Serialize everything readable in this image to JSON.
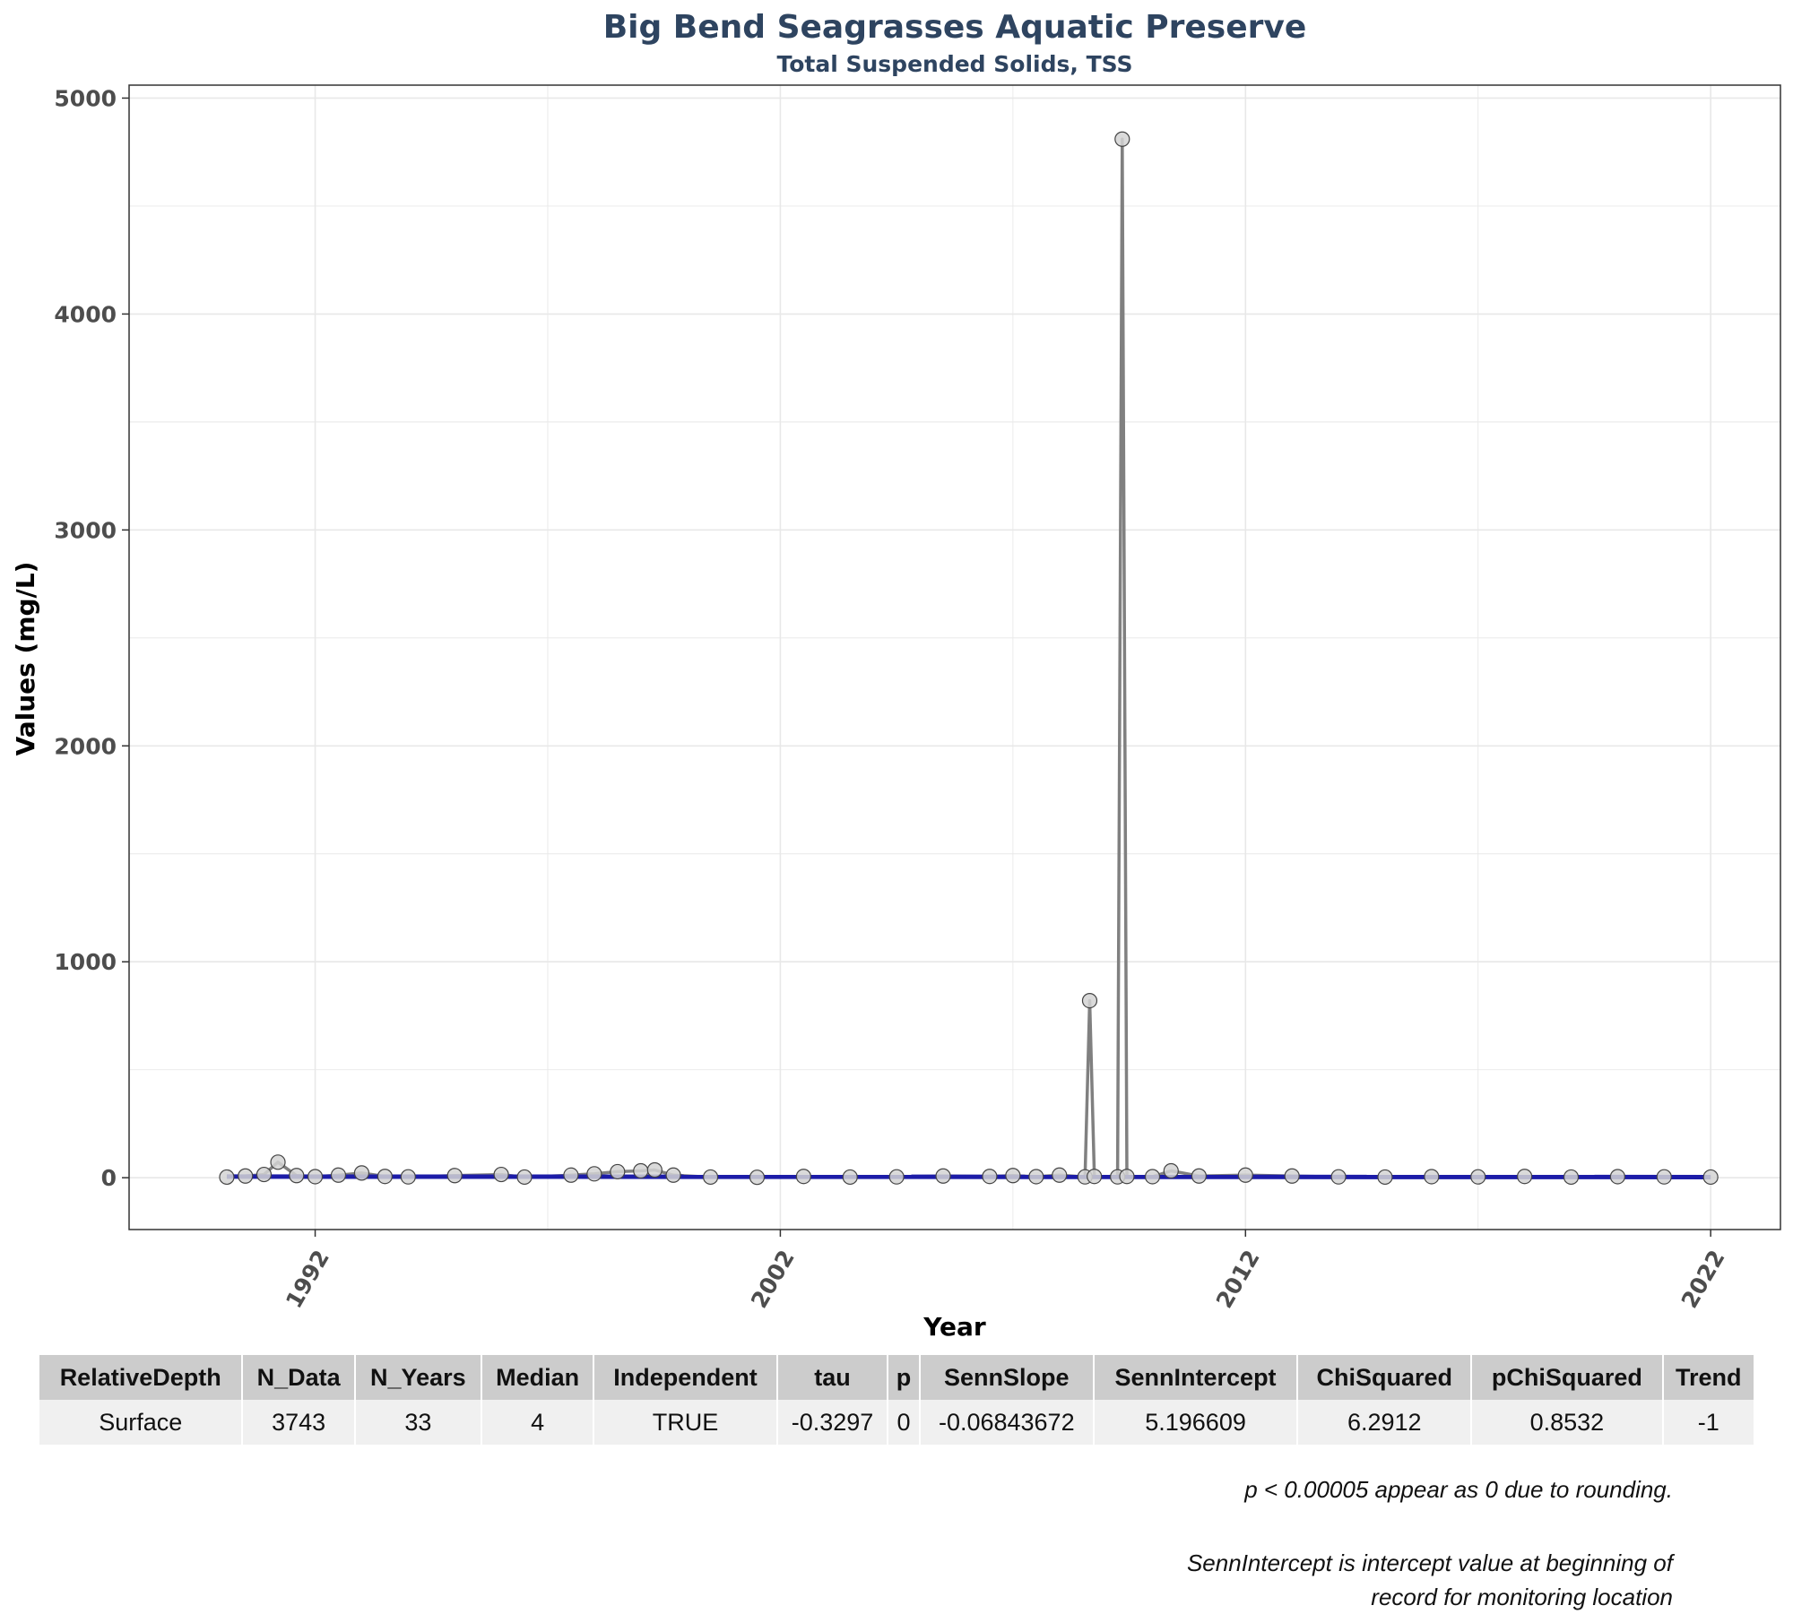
{
  "chart_data": {
    "type": "line",
    "title": "Big Bend Seagrasses Aquatic Preserve",
    "subtitle": "Total Suspended Solids, TSS",
    "xlabel": "Year",
    "ylabel": "Values (mg/L)",
    "xlim": [
      1988.0,
      2023.5
    ],
    "ylim": [
      -240,
      5060
    ],
    "x_ticks": [
      1992,
      2002,
      2012,
      2022
    ],
    "y_ticks": [
      0,
      1000,
      2000,
      3000,
      4000,
      5000
    ],
    "grid": true,
    "series": [
      {
        "points": [
          [
            1990.1,
            3
          ],
          [
            1990.5,
            8
          ],
          [
            1990.9,
            15
          ],
          [
            1991.2,
            72
          ],
          [
            1991.6,
            10
          ],
          [
            1992.0,
            5
          ],
          [
            1992.5,
            12
          ],
          [
            1993.0,
            22
          ],
          [
            1993.5,
            6
          ],
          [
            1994.0,
            4
          ],
          [
            1995.0,
            10
          ],
          [
            1996.0,
            15
          ],
          [
            1996.5,
            3
          ],
          [
            1997.5,
            12
          ],
          [
            1998.0,
            18
          ],
          [
            1998.5,
            28
          ],
          [
            1999.0,
            32
          ],
          [
            1999.3,
            36
          ],
          [
            1999.7,
            12
          ],
          [
            2000.5,
            3
          ],
          [
            2001.5,
            2
          ],
          [
            2002.5,
            6
          ],
          [
            2003.5,
            3
          ],
          [
            2004.5,
            4
          ],
          [
            2005.5,
            8
          ],
          [
            2006.5,
            6
          ],
          [
            2007.0,
            10
          ],
          [
            2007.5,
            5
          ],
          [
            2008.0,
            12
          ],
          [
            2008.55,
            4
          ],
          [
            2008.65,
            820
          ],
          [
            2008.75,
            6
          ],
          [
            2009.25,
            4
          ],
          [
            2009.35,
            4810
          ],
          [
            2009.45,
            6
          ],
          [
            2010.0,
            5
          ],
          [
            2010.4,
            32
          ],
          [
            2011.0,
            8
          ],
          [
            2012.0,
            12
          ],
          [
            2013.0,
            8
          ],
          [
            2014.0,
            4
          ],
          [
            2015.0,
            3
          ],
          [
            2016.0,
            5
          ],
          [
            2017.0,
            4
          ],
          [
            2018.0,
            6
          ],
          [
            2019.0,
            3
          ],
          [
            2020.0,
            5
          ],
          [
            2021.0,
            4
          ],
          [
            2022.0,
            3
          ]
        ]
      }
    ],
    "trend": {
      "type": "sen-slope",
      "start_year": 1990.1,
      "end_year": 2022.0,
      "intercept": 5.196609,
      "slope": -0.06843672
    },
    "colors": {
      "line": "#808080",
      "point_fill": "#d4d4d4",
      "point_stroke": "#444444",
      "trend": "#1c1ca8",
      "title": "#2e4460",
      "grid": "#e8e8e8"
    }
  },
  "stats_table": {
    "headers": [
      "RelativeDepth",
      "N_Data",
      "N_Years",
      "Median",
      "Independent",
      "tau",
      "p",
      "SennSlope",
      "SennIntercept",
      "ChiSquared",
      "pChiSquared",
      "Trend"
    ],
    "rows": [
      [
        "Surface",
        "3743",
        "33",
        "4",
        "TRUE",
        "-0.3297",
        "0",
        "-0.06843672",
        "5.196609",
        "6.2912",
        "0.8532",
        "-1"
      ]
    ]
  },
  "notes": {
    "rounding": "p < 0.00005 appear as 0 due to rounding.",
    "intercept_line1": "SennIntercept is intercept value at beginning of",
    "intercept_line2": "record for monitoring location"
  }
}
